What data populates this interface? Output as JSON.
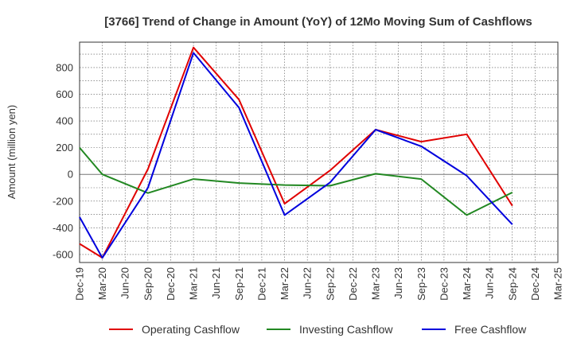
{
  "chart_data": {
    "type": "line",
    "title": "[3766]  Trend of Change in Amount (YoY) of 12Mo Moving Sum of Cashflows",
    "xlabel": "",
    "ylabel": "Amount (million yen)",
    "categories": [
      "Dec-19",
      "Mar-20",
      "Jun-20",
      "Sep-20",
      "Dec-20",
      "Mar-21",
      "Jun-21",
      "Sep-21",
      "Dec-21",
      "Mar-22",
      "Jun-22",
      "Sep-22",
      "Dec-22",
      "Mar-23",
      "Jun-23",
      "Sep-23",
      "Dec-23",
      "Mar-24",
      "Jun-24",
      "Sep-24",
      "Dec-24",
      "Mar-25"
    ],
    "yticks": [
      800,
      600,
      400,
      200,
      0,
      -200,
      -400,
      -600
    ],
    "ylim": [
      -660,
      990
    ],
    "grid": true,
    "legend_position": "bottom",
    "series": [
      {
        "name": "Operating Cashflow",
        "color": "#e00000",
        "values": [
          -520,
          -625,
          null,
          40,
          null,
          950,
          null,
          560,
          null,
          -220,
          null,
          30,
          null,
          335,
          null,
          245,
          null,
          300,
          null,
          -235,
          null,
          null
        ]
      },
      {
        "name": "Investing Cashflow",
        "color": "#228822",
        "values": [
          200,
          0,
          null,
          -140,
          null,
          -35,
          null,
          -65,
          null,
          -80,
          null,
          -85,
          null,
          5,
          null,
          -35,
          null,
          -305,
          null,
          -135,
          null,
          null
        ]
      },
      {
        "name": "Free Cashflow",
        "color": "#0000dd",
        "values": [
          -320,
          -625,
          null,
          -100,
          null,
          910,
          null,
          500,
          null,
          -305,
          null,
          -60,
          null,
          335,
          null,
          210,
          null,
          -10,
          null,
          -375,
          null,
          null
        ]
      }
    ]
  }
}
